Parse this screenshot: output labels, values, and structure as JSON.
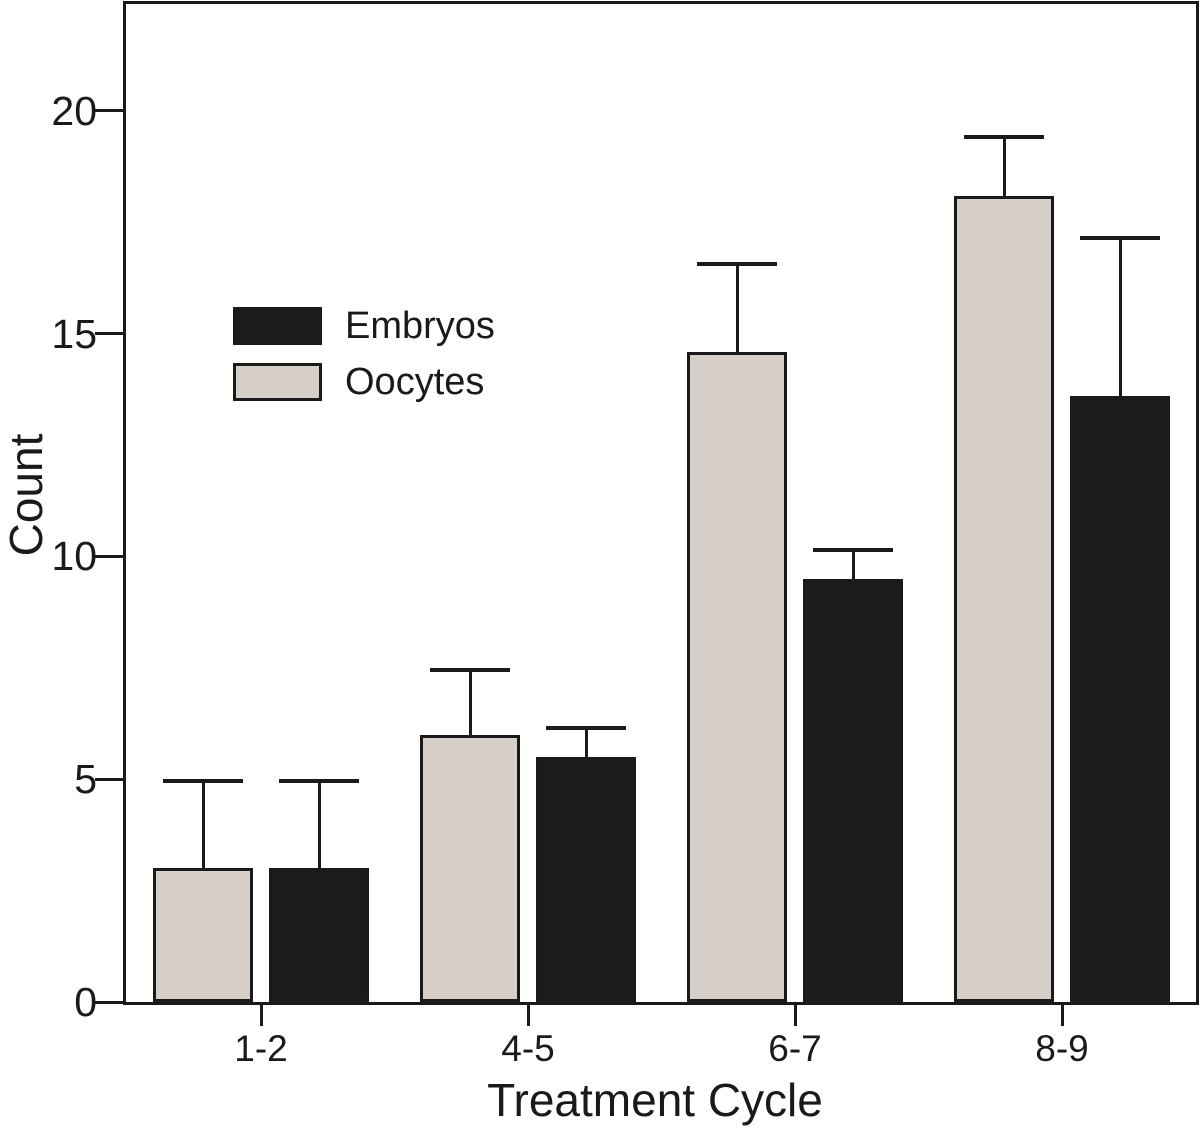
{
  "figure": {
    "background": "#fffffe",
    "ink_color": "#1a1a1a"
  },
  "chart_data": {
    "type": "bar",
    "title": "",
    "xlabel": "Treatment Cycle",
    "ylabel": "Count",
    "categories": [
      "1-2",
      "4-5",
      "6-7",
      "8-9"
    ],
    "yticks": [
      0,
      5,
      10,
      15,
      20
    ],
    "ylim": [
      0,
      22.4
    ],
    "grid": false,
    "bar_draw_order": [
      "Oocytes",
      "Embryos"
    ],
    "series": [
      {
        "name": "Oocytes",
        "color": "#d5cfc8",
        "values": [
          3.0,
          6.0,
          14.6,
          18.1
        ],
        "error_up": [
          2.0,
          1.5,
          2.0,
          1.35
        ]
      },
      {
        "name": "Embryos",
        "color": "#1b1b1b",
        "values": [
          3.0,
          5.5,
          9.5,
          13.6
        ],
        "error_up": [
          2.0,
          0.7,
          0.7,
          3.6
        ]
      }
    ],
    "legend": {
      "position": "upper-left-inside",
      "entries": [
        {
          "label": "Embryos",
          "color": "#1b1b1b"
        },
        {
          "label": "Oocytes",
          "color": "#d5cfc8"
        }
      ]
    }
  }
}
